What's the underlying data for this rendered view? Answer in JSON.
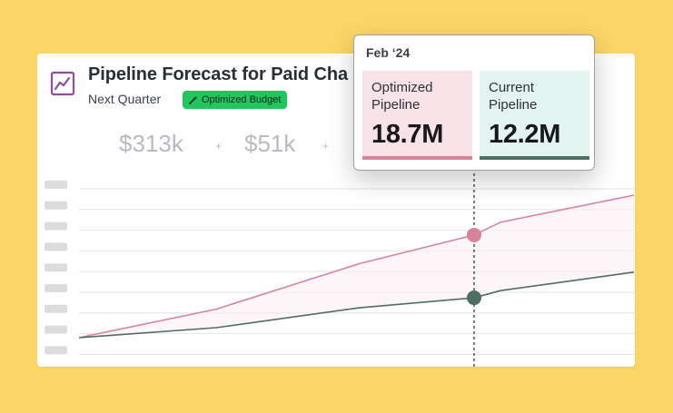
{
  "card": {
    "title": "Pipeline Forecast for Paid Cha",
    "subtitle": "Next Quarter",
    "badge_label": "Optimized Budget",
    "icon": "trend-chart-icon",
    "badge_icon": "magic-wand-icon"
  },
  "stats": [
    {
      "value": "$313k"
    },
    {
      "value": "$51k"
    }
  ],
  "stat_separator": "+",
  "tooltip": {
    "date": "Feb ‘24",
    "optimized": {
      "label": "Optimized Pipeline",
      "value": "18.7M"
    },
    "current": {
      "label": "Current Pipeline",
      "value": "12.2M"
    }
  },
  "colors": {
    "background": "#FBD666",
    "optimized": "#D8839A",
    "current": "#4F6E63",
    "badge": "#22C55E",
    "icon": "#8E4DA7"
  },
  "chart_data": {
    "type": "line",
    "series": [
      {
        "name": "Optimized Pipeline",
        "values": [
          0,
          0.2,
          0.52,
          0.72,
          0.81,
          1.0
        ]
      },
      {
        "name": "Current Pipeline",
        "values": [
          0,
          0.07,
          0.21,
          0.28,
          0.33,
          0.46
        ]
      }
    ],
    "highlight_index": 3,
    "grid": true
  }
}
